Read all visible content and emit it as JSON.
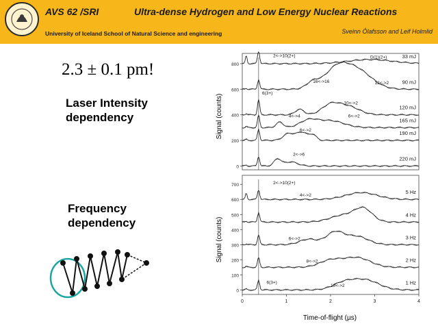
{
  "header": {
    "venue": "AVS 62 /SRI",
    "title": "Ultra-dense Hydrogen and Low Energy Nuclear Reactions",
    "institution": "University of Iceland School of Natural Science and engineering",
    "authors": "Sveinn Ólafsson and Leif Holmlid",
    "seal_text": "UNIVERSITAS ISLANDIAE"
  },
  "result_text": "2.3 ± 0.1 pm!",
  "labels": {
    "laser": "Laser Intensity\ndependency",
    "frequency": "Frequency\ndependency"
  },
  "colors": {
    "header_bg": "#f7b619",
    "illustration": "#1aa6a0",
    "trace": "#222222"
  },
  "chart_data": [
    {
      "type": "line",
      "title": "",
      "xlabel": "Time-of-flight (µs)",
      "ylabel": "Signal (counts)",
      "xlim": [
        0,
        4
      ],
      "yticks": [
        0,
        200,
        400,
        600,
        800
      ],
      "series": [
        {
          "name": "33 mJ",
          "offset": 800
        },
        {
          "name": "90 mJ",
          "offset": 600
        },
        {
          "name": "120 mJ",
          "offset": 400
        },
        {
          "name": "165 mJ",
          "offset": 300
        },
        {
          "name": "190 mJ",
          "offset": 200
        },
        {
          "name": "220 mJ",
          "offset": 0
        }
      ],
      "annotations": [
        "2<->10(2+)",
        "D(1)(2+)",
        "16<->16",
        "12<->2",
        "6(3+)",
        "10<->2",
        "4<->4",
        "6<->2",
        "6<->2",
        "2<->6"
      ]
    },
    {
      "type": "line",
      "title": "",
      "xlabel": "Time-of-flight (µs)",
      "ylabel": "Signal (counts)",
      "xlim": [
        0,
        4
      ],
      "xticks": [
        0,
        1,
        2,
        3,
        4
      ],
      "yticks": [
        0,
        100,
        200,
        300,
        400,
        500,
        600,
        700
      ],
      "series": [
        {
          "name": "5 Hz",
          "offset": 600
        },
        {
          "name": "4 Hz",
          "offset": 450
        },
        {
          "name": "3 Hz",
          "offset": 300
        },
        {
          "name": "2 Hz",
          "offset": 150
        },
        {
          "name": "1 Hz",
          "offset": 0
        }
      ],
      "annotations": [
        "2<->10(2+)",
        "4<->2",
        "6<->2",
        "8<->2",
        "6(3+)",
        "10<->2"
      ]
    }
  ]
}
